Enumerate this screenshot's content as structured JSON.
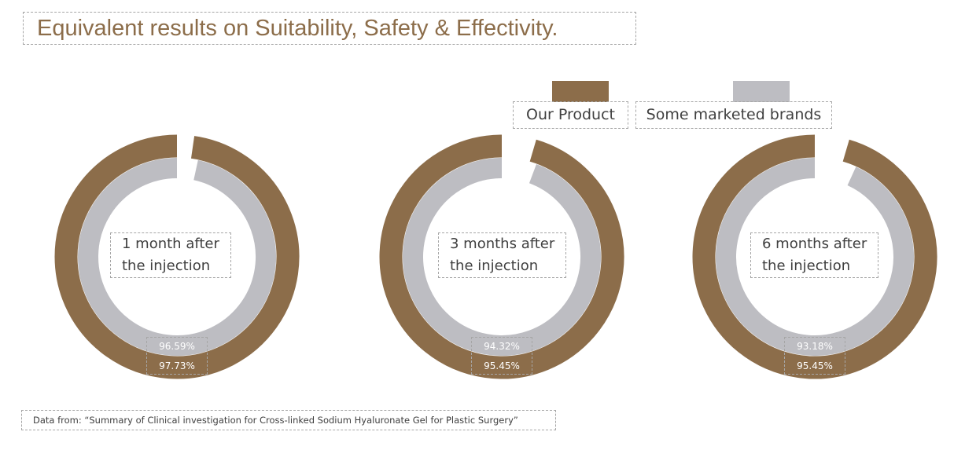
{
  "title": "Equivalent results on Suitability, Safety & Effectivity.",
  "colors": {
    "our_product": "#8c6d4a",
    "marketed": "#bdbdc2",
    "outline": "#a6a6a6"
  },
  "legend": [
    {
      "label": "Our Product",
      "color": "#8c6d4a"
    },
    {
      "label": "Some marketed brands",
      "color": "#bdbdc2"
    }
  ],
  "chart_data": [
    {
      "type": "donut",
      "label_line1": "1 month after",
      "label_line2": "the injection",
      "series": [
        {
          "name": "Our Product",
          "value": 97.73,
          "label": "97.73%"
        },
        {
          "name": "Some marketed brands",
          "value": 96.59,
          "label": "96.59%"
        }
      ]
    },
    {
      "type": "donut",
      "label_line1": "3 months after",
      "label_line2": "the injection",
      "series": [
        {
          "name": "Our Product",
          "value": 95.45,
          "label": "95.45%"
        },
        {
          "name": "Some marketed brands",
          "value": 94.32,
          "label": "94.32%"
        }
      ]
    },
    {
      "type": "donut",
      "label_line1": "6 months after",
      "label_line2": "the injection",
      "series": [
        {
          "name": "Our Product",
          "value": 95.45,
          "label": "95.45%"
        },
        {
          "name": "Some marketed brands",
          "value": 93.18,
          "label": "93.18%"
        }
      ]
    }
  ],
  "source": "Data from: “Summary of Clinical investigation for Cross-linked Sodium Hyaluronate Gel for Plastic Surgery”"
}
